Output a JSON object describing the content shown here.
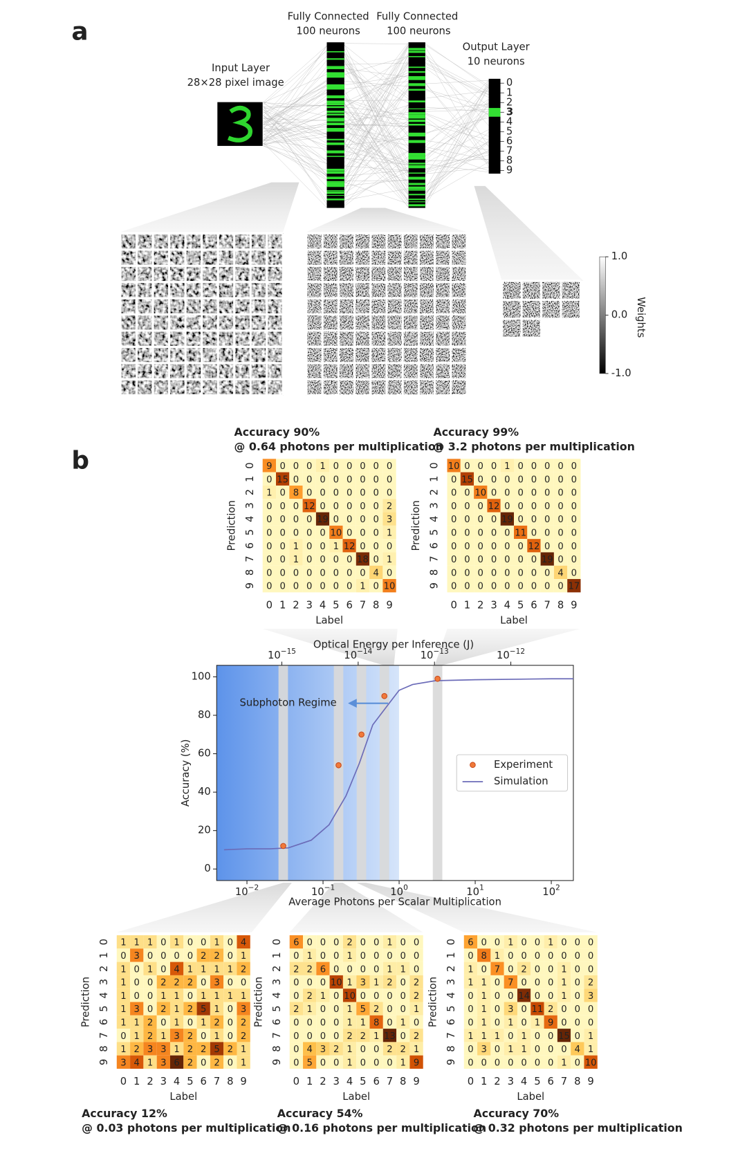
{
  "panel_a": {
    "label": "a",
    "input_layer": {
      "title": "Input Layer",
      "subtitle": "28×28 pixel image"
    },
    "hidden_layers": [
      {
        "title": "Fully Connected",
        "subtitle": "100 neurons"
      },
      {
        "title": "Fully Connected",
        "subtitle": "100 neurons"
      }
    ],
    "output_layer": {
      "title": "Output Layer",
      "subtitle": "10 neurons",
      "labels": [
        "0",
        "1",
        "2",
        "3",
        "4",
        "5",
        "6",
        "7",
        "8",
        "9"
      ]
    },
    "colorbar": {
      "label": "Weights",
      "lim": [
        -1,
        1
      ],
      "ticks": [
        {
          "value": 1,
          "label": "1.0"
        },
        {
          "value": 0,
          "label": "0.0"
        },
        {
          "value": -1,
          "label": "-1.0"
        }
      ]
    }
  },
  "panel_b": {
    "label": "b"
  },
  "chart_data": [
    {
      "type": "line",
      "x_label": "Average Photons per Scalar Multiplication",
      "x2_label": "Optical Energy per Inference (J)",
      "y_label": "Accuracy (%)",
      "xscale": "log",
      "xlim": [
        0.004,
        195
      ],
      "xticks": [
        {
          "value": 0.01,
          "label": "10",
          "sup": "−2"
        },
        {
          "value": 0.1,
          "label": "10",
          "sup": "−1"
        },
        {
          "value": 1,
          "label": "10",
          "sup": "0"
        },
        {
          "value": 10,
          "label": "10",
          "sup": "1"
        },
        {
          "value": 100,
          "label": "10",
          "sup": "2"
        }
      ],
      "x2scale": "log",
      "x2lim": [
        1.4e-16,
        6.6e-12
      ],
      "x2ticks": [
        {
          "value": 1e-15,
          "label": "10",
          "sup": "−15"
        },
        {
          "value": 1e-14,
          "label": "10",
          "sup": "−14"
        },
        {
          "value": 1e-13,
          "label": "10",
          "sup": "−13"
        },
        {
          "value": 1e-12,
          "label": "10",
          "sup": "−12"
        }
      ],
      "ylim": [
        -6,
        106
      ],
      "yticks": [
        0,
        20,
        40,
        60,
        80,
        100
      ],
      "annotation": "Subphoton Regime",
      "legend": "center right",
      "series": [
        {
          "name": "Experiment",
          "type": "scatter",
          "color": "#f07a3a",
          "x": [
            0.03,
            0.16,
            0.32,
            0.64,
            3.2
          ],
          "values": [
            12,
            54,
            70,
            90,
            99
          ]
        },
        {
          "name": "Simulation",
          "type": "line",
          "color": "#6b6bb8",
          "x": [
            0.005,
            0.01,
            0.02,
            0.035,
            0.07,
            0.12,
            0.2,
            0.3,
            0.45,
            0.7,
            1,
            1.5,
            3,
            10,
            100,
            195
          ],
          "values": [
            10,
            10.5,
            10.5,
            11,
            15,
            23,
            38,
            55,
            75,
            85,
            93,
            96,
            98,
            98.5,
            99,
            99
          ]
        }
      ]
    },
    {
      "type": "heatmap",
      "title": "Accuracy 90%",
      "subtitle": "@ 0.64 photons per multiplication",
      "x_label": "Label",
      "y_label": "Prediction",
      "xticks": [
        0,
        1,
        2,
        3,
        4,
        5,
        6,
        7,
        8,
        9
      ],
      "yticks": [
        0,
        1,
        2,
        3,
        4,
        5,
        6,
        7,
        8,
        9
      ],
      "values": [
        [
          9,
          0,
          0,
          0,
          1,
          0,
          0,
          0,
          0,
          0
        ],
        [
          0,
          15,
          0,
          0,
          0,
          0,
          0,
          0,
          0,
          0
        ],
        [
          1,
          0,
          8,
          0,
          0,
          0,
          0,
          0,
          0,
          0
        ],
        [
          0,
          0,
          0,
          12,
          0,
          0,
          0,
          0,
          0,
          2
        ],
        [
          0,
          0,
          0,
          0,
          19,
          0,
          0,
          0,
          0,
          3
        ],
        [
          0,
          0,
          0,
          0,
          0,
          10,
          0,
          0,
          0,
          1
        ],
        [
          0,
          0,
          1,
          0,
          0,
          1,
          12,
          0,
          0,
          0
        ],
        [
          0,
          0,
          1,
          0,
          0,
          0,
          0,
          18,
          0,
          1
        ],
        [
          0,
          0,
          0,
          0,
          0,
          0,
          0,
          0,
          4,
          0
        ],
        [
          0,
          0,
          0,
          0,
          0,
          0,
          0,
          1,
          0,
          10
        ]
      ]
    },
    {
      "type": "heatmap",
      "title": "Accuracy 99%",
      "subtitle": "@ 3.2 photons per multiplication",
      "x_label": "Label",
      "y_label": "Prediction",
      "xticks": [
        0,
        1,
        2,
        3,
        4,
        5,
        6,
        7,
        8,
        9
      ],
      "yticks": [
        0,
        1,
        2,
        3,
        4,
        5,
        6,
        7,
        8,
        9
      ],
      "values": [
        [
          10,
          0,
          0,
          0,
          1,
          0,
          0,
          0,
          0,
          0
        ],
        [
          0,
          15,
          0,
          0,
          0,
          0,
          0,
          0,
          0,
          0
        ],
        [
          0,
          0,
          10,
          0,
          0,
          0,
          0,
          0,
          0,
          0
        ],
        [
          0,
          0,
          0,
          12,
          0,
          0,
          0,
          0,
          0,
          0
        ],
        [
          0,
          0,
          0,
          0,
          19,
          0,
          0,
          0,
          0,
          0
        ],
        [
          0,
          0,
          0,
          0,
          0,
          11,
          0,
          0,
          0,
          0
        ],
        [
          0,
          0,
          0,
          0,
          0,
          0,
          12,
          0,
          0,
          0
        ],
        [
          0,
          0,
          0,
          0,
          0,
          0,
          0,
          19,
          0,
          0
        ],
        [
          0,
          0,
          0,
          0,
          0,
          0,
          0,
          0,
          4,
          0
        ],
        [
          0,
          0,
          0,
          0,
          0,
          0,
          0,
          0,
          0,
          17
        ]
      ]
    },
    {
      "type": "heatmap",
      "title": "Accuracy 12%",
      "subtitle": "@ 0.03 photons per multiplication",
      "x_label": "Label",
      "y_label": "Prediction",
      "xticks": [
        0,
        1,
        2,
        3,
        4,
        5,
        6,
        7,
        8,
        9
      ],
      "yticks": [
        0,
        1,
        2,
        3,
        4,
        5,
        6,
        7,
        8,
        9
      ],
      "values": [
        [
          1,
          1,
          1,
          0,
          1,
          0,
          0,
          1,
          0,
          4
        ],
        [
          0,
          3,
          0,
          0,
          0,
          0,
          2,
          2,
          0,
          1
        ],
        [
          1,
          0,
          1,
          0,
          4,
          1,
          1,
          1,
          1,
          2
        ],
        [
          1,
          0,
          0,
          2,
          2,
          2,
          0,
          3,
          0,
          0
        ],
        [
          1,
          0,
          0,
          1,
          1,
          0,
          1,
          1,
          1,
          1
        ],
        [
          1,
          3,
          0,
          2,
          1,
          2,
          5,
          1,
          0,
          3
        ],
        [
          1,
          1,
          2,
          0,
          1,
          0,
          1,
          2,
          0,
          2
        ],
        [
          0,
          1,
          2,
          1,
          3,
          2,
          0,
          1,
          0,
          2
        ],
        [
          1,
          2,
          3,
          3,
          1,
          2,
          2,
          5,
          2,
          1
        ],
        [
          3,
          4,
          1,
          3,
          6,
          2,
          0,
          2,
          0,
          1
        ]
      ]
    },
    {
      "type": "heatmap",
      "title": "Accuracy 54%",
      "subtitle": "@ 0.16 photons per multiplication",
      "x_label": "Label",
      "y_label": "Prediction",
      "xticks": [
        0,
        1,
        2,
        3,
        4,
        5,
        6,
        7,
        8,
        9
      ],
      "yticks": [
        0,
        1,
        2,
        3,
        4,
        5,
        6,
        7,
        8,
        9
      ],
      "values": [
        [
          6,
          0,
          0,
          0,
          2,
          0,
          0,
          1,
          0,
          0
        ],
        [
          0,
          1,
          0,
          0,
          1,
          0,
          0,
          0,
          0,
          0
        ],
        [
          2,
          2,
          6,
          0,
          0,
          0,
          0,
          1,
          1,
          0
        ],
        [
          0,
          0,
          0,
          10,
          1,
          3,
          1,
          2,
          0,
          2
        ],
        [
          0,
          2,
          1,
          0,
          10,
          0,
          0,
          0,
          0,
          2
        ],
        [
          2,
          1,
          0,
          0,
          1,
          5,
          2,
          0,
          0,
          1
        ],
        [
          0,
          0,
          0,
          0,
          1,
          1,
          8,
          0,
          1,
          0
        ],
        [
          0,
          0,
          0,
          0,
          2,
          2,
          1,
          13,
          0,
          2
        ],
        [
          0,
          4,
          3,
          2,
          1,
          0,
          0,
          2,
          2,
          1
        ],
        [
          0,
          5,
          0,
          0,
          1,
          0,
          0,
          0,
          1,
          9
        ]
      ]
    },
    {
      "type": "heatmap",
      "title": "Accuracy 70%",
      "subtitle": "@ 0.32 photons per multiplication",
      "x_label": "Label",
      "y_label": "Prediction",
      "xticks": [
        0,
        1,
        2,
        3,
        4,
        5,
        6,
        7,
        8,
        9
      ],
      "yticks": [
        0,
        1,
        2,
        3,
        4,
        5,
        6,
        7,
        8,
        9
      ],
      "values": [
        [
          6,
          0,
          0,
          1,
          0,
          0,
          1,
          0,
          0,
          0
        ],
        [
          0,
          8,
          1,
          0,
          0,
          0,
          0,
          0,
          0,
          0
        ],
        [
          1,
          0,
          7,
          0,
          2,
          0,
          0,
          1,
          0,
          0
        ],
        [
          1,
          1,
          0,
          7,
          0,
          0,
          0,
          1,
          0,
          2
        ],
        [
          0,
          1,
          0,
          0,
          14,
          0,
          0,
          1,
          0,
          3
        ],
        [
          0,
          1,
          0,
          3,
          0,
          11,
          2,
          0,
          0,
          0
        ],
        [
          0,
          1,
          0,
          1,
          0,
          1,
          9,
          0,
          0,
          0
        ],
        [
          1,
          1,
          1,
          0,
          1,
          0,
          0,
          15,
          0,
          1
        ],
        [
          0,
          3,
          0,
          1,
          1,
          0,
          0,
          0,
          4,
          1
        ],
        [
          0,
          0,
          0,
          0,
          0,
          0,
          0,
          1,
          0,
          10
        ]
      ]
    }
  ]
}
